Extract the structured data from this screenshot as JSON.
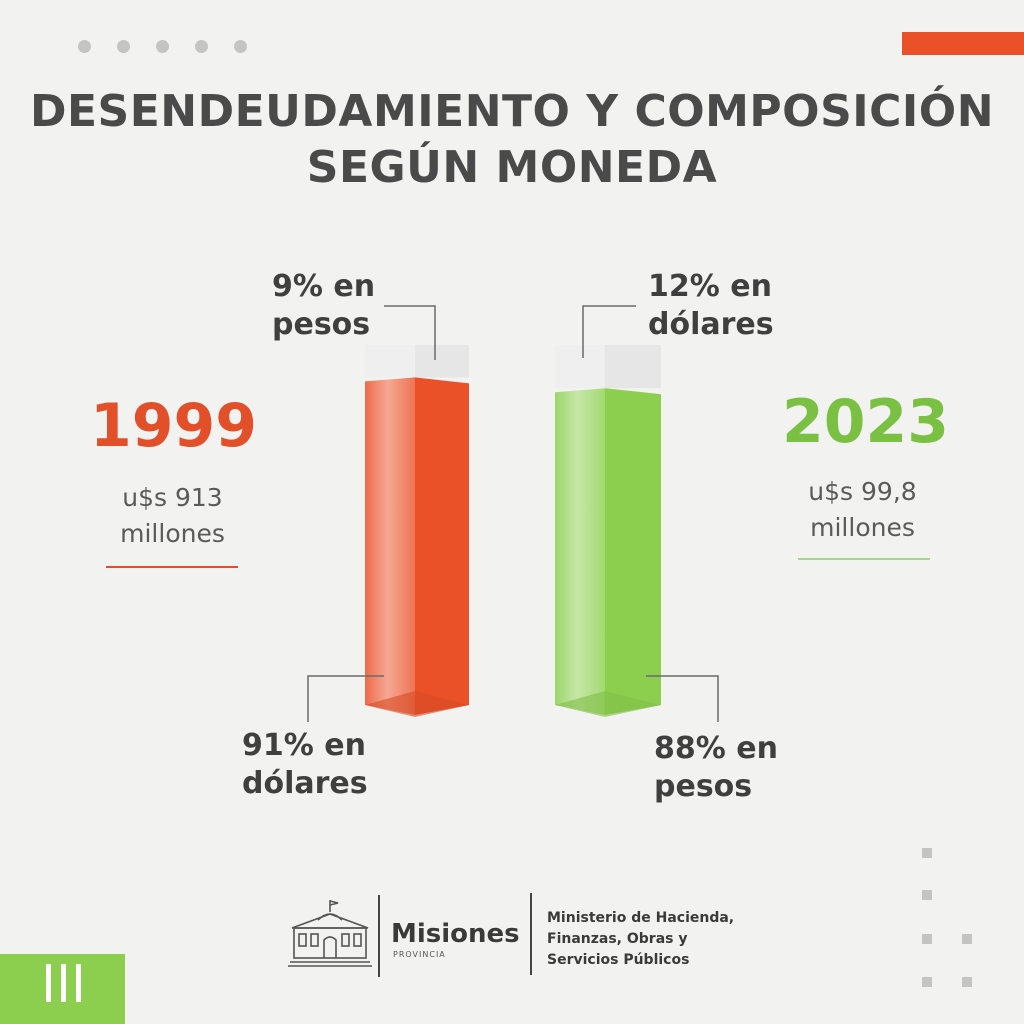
{
  "title": {
    "line1": "DESENDEUDAMIENTO Y COMPOSICIÓN",
    "line2": "SEGÚN MONEDA"
  },
  "colors": {
    "accent": "#ea5129",
    "green": "#8ccf4e",
    "text": "#4a4a4a",
    "cap": "#e6e6e6"
  },
  "left": {
    "year": "1999",
    "amount_line1": "u$s 913",
    "amount_line2": "millones",
    "top_label_line1": "9% en",
    "top_label_line2": "pesos",
    "bottom_label_line1": "91% en",
    "bottom_label_line2": "dólares"
  },
  "right": {
    "year": "2023",
    "amount_line1": "u$s 99,8",
    "amount_line2": "millones",
    "top_label_line1": "12% en",
    "top_label_line2": "dólares",
    "bottom_label_line1": "88% en",
    "bottom_label_line2": "pesos"
  },
  "chart_data": {
    "type": "bar",
    "categories": [
      "1999",
      "2023"
    ],
    "series": [
      {
        "values": [
          91,
          88
        ],
        "colors": [
          "#ea5129",
          "#8ccf4e"
        ]
      },
      {
        "values": [
          9,
          12
        ],
        "colors": [
          "#e6e6e6",
          "#e6e6e6"
        ]
      }
    ],
    "stacked": true,
    "ylim": [
      0,
      100
    ]
  },
  "footer": {
    "brand": "Misiones",
    "brand_sub": "PROVINCIA",
    "ministry_line1": "Ministerio de Hacienda,",
    "ministry_line2": "Finanzas, Obras y",
    "ministry_line3": "Servicios Públicos"
  }
}
